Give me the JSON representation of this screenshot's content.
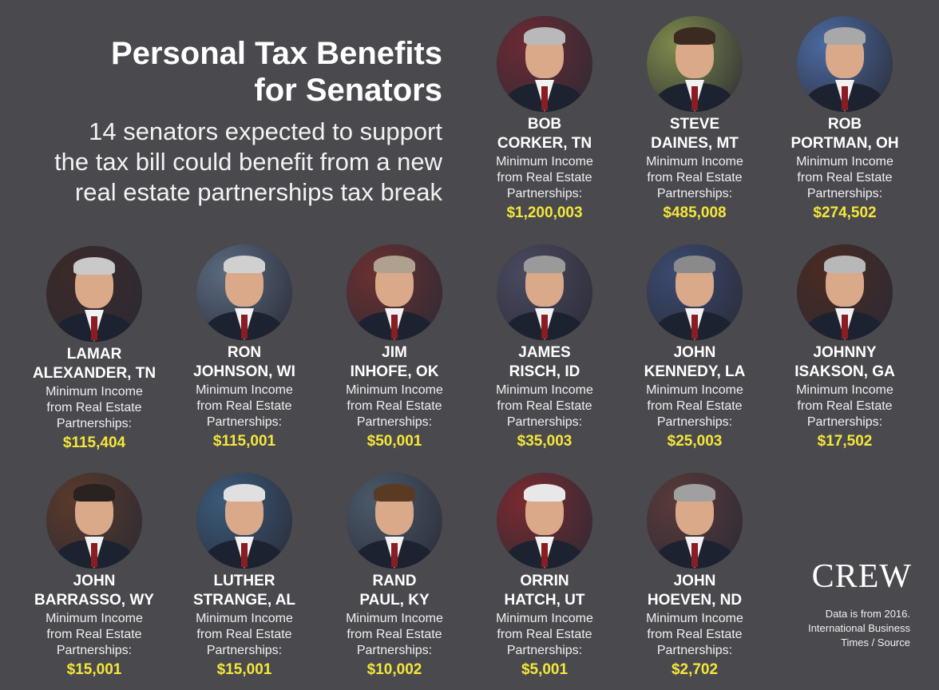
{
  "header": {
    "title_line1": "Personal Tax Benefits",
    "title_line2": "for Senators",
    "subtitle_line1": "14 senators expected to support",
    "subtitle_line2": "the tax bill could benefit from a new",
    "subtitle_line3": "real estate partnerships tax break"
  },
  "desc_line1": "Minimum Income",
  "desc_line2": "from Real Estate",
  "desc_line3": "Partnerships:",
  "senators": [
    {
      "first": "BOB",
      "last": "CORKER, TN",
      "amount": "$1,200,003",
      "hair": "#b9b9b9",
      "bg": "#6b2a33"
    },
    {
      "first": "STEVE",
      "last": "DAINES, MT",
      "amount": "$485,008",
      "hair": "#3b2a20",
      "bg": "#7d8a4a"
    },
    {
      "first": "ROB",
      "last": "PORTMAN, OH",
      "amount": "$274,502",
      "hair": "#a8a8a8",
      "bg": "#4a6aa0"
    },
    {
      "first": "LAMAR",
      "last": "ALEXANDER, TN",
      "amount": "$115,404",
      "hair": "#c9c9c9",
      "bg": "#3c2a28"
    },
    {
      "first": "RON",
      "last": "JOHNSON, WI",
      "amount": "$115,001",
      "hair": "#d0d0d0",
      "bg": "#5a6a80"
    },
    {
      "first": "JIM",
      "last": "INHOFE, OK",
      "amount": "$50,001",
      "hair": "#b0a090",
      "bg": "#6a3030"
    },
    {
      "first": "JAMES",
      "last": "RISCH, ID",
      "amount": "$35,003",
      "hair": "#9a9a9a",
      "bg": "#4a4a60"
    },
    {
      "first": "JOHN",
      "last": "KENNEDY, LA",
      "amount": "$25,003",
      "hair": "#8a8a8a",
      "bg": "#3a4a70"
    },
    {
      "first": "JOHNNY",
      "last": "ISAKSON, GA",
      "amount": "$17,502",
      "hair": "#b8b8b8",
      "bg": "#4a2a22"
    },
    {
      "first": "JOHN",
      "last": "BARRASSO, WY",
      "amount": "$15,001",
      "hair": "#2a2220",
      "bg": "#5a3a2a"
    },
    {
      "first": "LUTHER",
      "last": "STRANGE, AL",
      "amount": "$15,001",
      "hair": "#e0e0e0",
      "bg": "#3a5a7a"
    },
    {
      "first": "RAND",
      "last": "PAUL, KY",
      "amount": "$10,002",
      "hair": "#5a3a22",
      "bg": "#4a5a6a"
    },
    {
      "first": "ORRIN",
      "last": "HATCH, UT",
      "amount": "$5,001",
      "hair": "#e8e8e8",
      "bg": "#7a2a30"
    },
    {
      "first": "JOHN",
      "last": "HOEVEN, ND",
      "amount": "$2,702",
      "hair": "#a0a0a0",
      "bg": "#5a3a3a"
    }
  ],
  "logo": "CREW",
  "source_line1": "Data is from 2016.",
  "source_line2": "International Business",
  "source_line3": "Times / Source"
}
